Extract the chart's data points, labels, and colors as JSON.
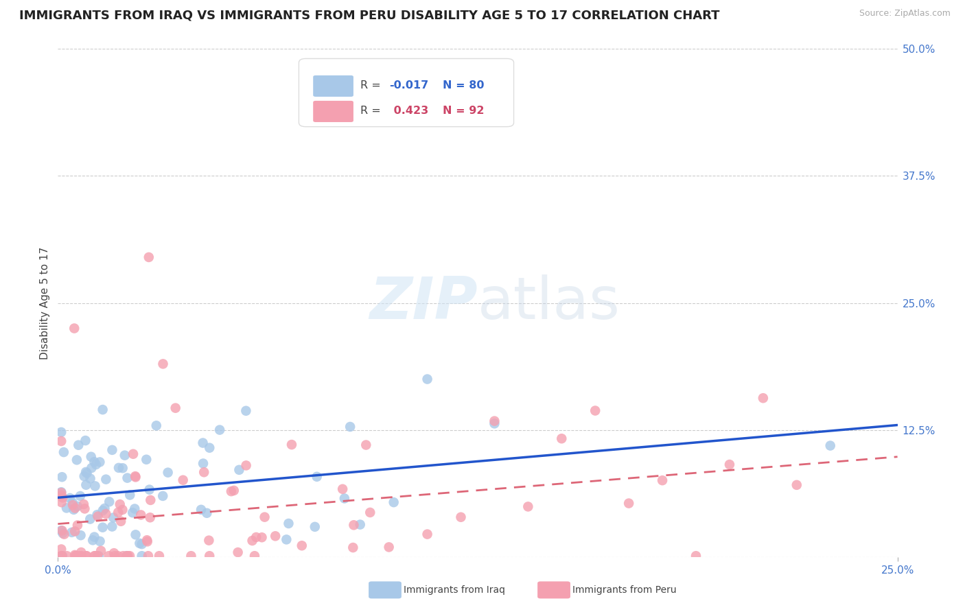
{
  "title": "IMMIGRANTS FROM IRAQ VS IMMIGRANTS FROM PERU DISABILITY AGE 5 TO 17 CORRELATION CHART",
  "source": "Source: ZipAtlas.com",
  "ylabel": "Disability Age 5 to 17",
  "xlim": [
    0.0,
    0.25
  ],
  "ylim": [
    0.0,
    0.5
  ],
  "yticks": [
    0.0,
    0.125,
    0.25,
    0.375,
    0.5
  ],
  "ytick_labels": [
    "",
    "12.5%",
    "25.0%",
    "37.5%",
    "50.0%"
  ],
  "iraq_R": -0.017,
  "iraq_N": 80,
  "peru_R": 0.423,
  "peru_N": 92,
  "iraq_color": "#a8c8e8",
  "peru_color": "#f4a0b0",
  "iraq_line_color": "#2255cc",
  "peru_line_color": "#dd6677",
  "title_color": "#222222",
  "axis_label_color": "#4477cc",
  "legend_R_color_iraq": "#3366cc",
  "legend_R_color_peru": "#cc4466",
  "background_color": "#ffffff",
  "grid_color": "#cccccc",
  "title_fontsize": 13,
  "axis_tick_fontsize": 11,
  "ylabel_fontsize": 11
}
